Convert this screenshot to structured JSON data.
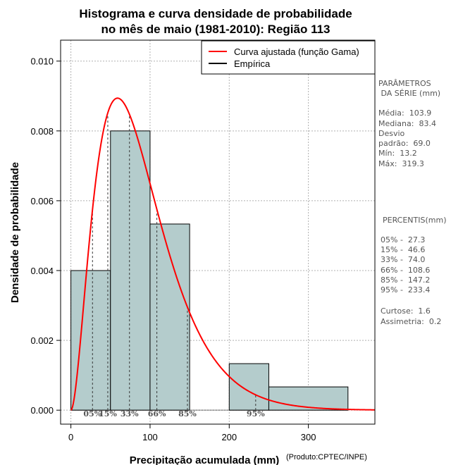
{
  "chart_data": {
    "type": "bar",
    "title": "Histograma e curva densidade de probabilidade",
    "subtitle": "no mês de maio (1981-2010): Região 113",
    "xlabel": "Precipitação acumulada (mm)",
    "ylabel": "Densidade de probabilidade",
    "credit": "(Produto:CPTEC/INPE)",
    "xlim": [
      -13,
      384
    ],
    "ylim": [
      -0.0004,
      0.0106
    ],
    "xticks": [
      0,
      100,
      200,
      300
    ],
    "yticks": [
      0.0,
      0.002,
      0.004,
      0.006,
      0.008,
      0.01
    ],
    "ytick_labels": [
      "0.000",
      "0.002",
      "0.004",
      "0.006",
      "0.008",
      "0.010"
    ],
    "grid": true,
    "legend_position": "top-right",
    "colors": {
      "bar_fill": "#b4cccc",
      "curve": "#ff0000",
      "empirical": "#000000"
    },
    "bins": [
      {
        "start": 0,
        "end": 50,
        "density": 0.004
      },
      {
        "start": 50,
        "end": 100,
        "density": 0.008
      },
      {
        "start": 100,
        "end": 150,
        "density": 0.005333
      },
      {
        "start": 150,
        "end": 200,
        "density": 0.0
      },
      {
        "start": 200,
        "end": 250,
        "density": 0.001333
      },
      {
        "start": 250,
        "end": 350,
        "density": 0.000667
      }
    ],
    "gamma_fit": {
      "shape": 2.9,
      "scale": 31.0
    },
    "legend": [
      "Curva ajustada (função Gama)",
      "Empírica"
    ],
    "percentile_markers": [
      {
        "label": "05%",
        "value": 27.3
      },
      {
        "label": "15%",
        "value": 46.6
      },
      {
        "label": "33%",
        "value": 74.0
      },
      {
        "label": "66%",
        "value": 108.6
      },
      {
        "label": "85%",
        "value": 147.2
      },
      {
        "label": "95%",
        "value": 233.4
      }
    ]
  },
  "side_panel": {
    "params_title_1": "PARÂMETROS",
    "params_title_2": " DA SÉRIE (mm)",
    "media": "Média:  103.9",
    "mediana": "Mediana:  83.4",
    "desvio_1": "Desvio",
    "desvio_2": "padrão:  69.0",
    "min": "Mín:  13.2",
    "max": "Máx:  319.3",
    "percentis_title": "PERCENTIS(mm)",
    "p05": "05% -  27.3",
    "p15": "15% -  46.6",
    "p33": "33% -  74.0",
    "p66": "66% -  108.6",
    "p85": "85% -  147.2",
    "p95": "95% -  233.4",
    "curtose": "Curtose:  1.6",
    "assimetria": "Assimetria:  0.2"
  }
}
